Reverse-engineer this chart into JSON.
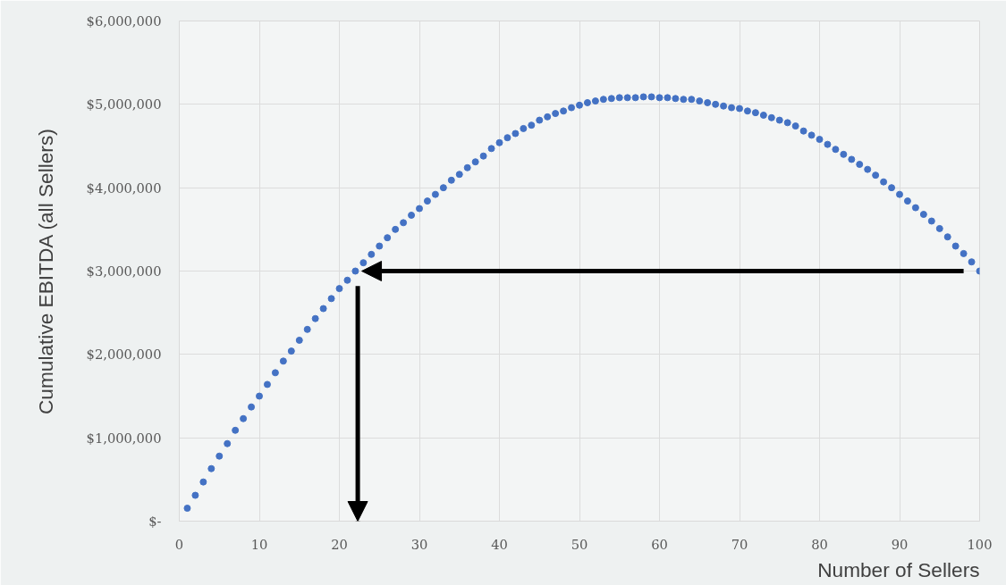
{
  "chart_data": {
    "type": "scatter",
    "xlabel": "Number of Sellers",
    "ylabel": "Cumulative EBITDA (all Sellers)",
    "x": [
      1,
      2,
      3,
      4,
      5,
      6,
      7,
      8,
      9,
      10,
      11,
      12,
      13,
      14,
      15,
      16,
      17,
      18,
      19,
      20,
      21,
      22,
      23,
      24,
      25,
      26,
      27,
      28,
      29,
      30,
      31,
      32,
      33,
      34,
      35,
      36,
      37,
      38,
      39,
      40,
      41,
      42,
      43,
      44,
      45,
      46,
      47,
      48,
      49,
      50,
      51,
      52,
      53,
      54,
      55,
      56,
      57,
      58,
      59,
      60,
      61,
      62,
      63,
      64,
      65,
      66,
      67,
      68,
      69,
      70,
      71,
      72,
      73,
      74,
      75,
      76,
      77,
      78,
      79,
      80,
      81,
      82,
      83,
      84,
      85,
      86,
      87,
      88,
      89,
      90,
      91,
      92,
      93,
      94,
      95,
      96,
      97,
      98,
      99,
      100
    ],
    "series": [
      {
        "color": "#4472c4",
        "values": [
          155000,
          310000,
          470000,
          630000,
          780000,
          930000,
          1090000,
          1230000,
          1370000,
          1500000,
          1640000,
          1780000,
          1920000,
          2040000,
          2170000,
          2300000,
          2430000,
          2550000,
          2670000,
          2790000,
          2890000,
          3000000,
          3100000,
          3200000,
          3300000,
          3400000,
          3500000,
          3580000,
          3670000,
          3750000,
          3840000,
          3920000,
          4000000,
          4090000,
          4160000,
          4240000,
          4310000,
          4380000,
          4470000,
          4540000,
          4600000,
          4650000,
          4710000,
          4750000,
          4810000,
          4850000,
          4890000,
          4920000,
          4960000,
          4990000,
          5020000,
          5040000,
          5060000,
          5070000,
          5080000,
          5080000,
          5080000,
          5090000,
          5090000,
          5080000,
          5080000,
          5070000,
          5060000,
          5060000,
          5040000,
          5020000,
          5000000,
          4980000,
          4960000,
          4950000,
          4920000,
          4900000,
          4870000,
          4840000,
          4810000,
          4780000,
          4740000,
          4680000,
          4630000,
          4580000,
          4520000,
          4460000,
          4400000,
          4340000,
          4280000,
          4220000,
          4150000,
          4070000,
          4000000,
          3920000,
          3840000,
          3760000,
          3680000,
          3600000,
          3510000,
          3410000,
          3300000,
          3210000,
          3110000,
          3000000
        ]
      }
    ],
    "xlim": [
      0,
      100
    ],
    "ylim": [
      0,
      6000000
    ],
    "xticks": [
      0,
      10,
      20,
      30,
      40,
      50,
      60,
      70,
      80,
      90,
      100
    ],
    "yticks": [
      {
        "value": 0,
        "label": "$-"
      },
      {
        "value": 1000000,
        "label": "$1,000,000"
      },
      {
        "value": 2000000,
        "label": "$2,000,000"
      },
      {
        "value": 3000000,
        "label": "$3,000,000"
      },
      {
        "value": 4000000,
        "label": "$4,000,000"
      },
      {
        "value": 5000000,
        "label": "$5,000,000"
      },
      {
        "value": 6000000,
        "label": "$6,000,000"
      }
    ],
    "grid": true,
    "marker": "circle"
  }
}
